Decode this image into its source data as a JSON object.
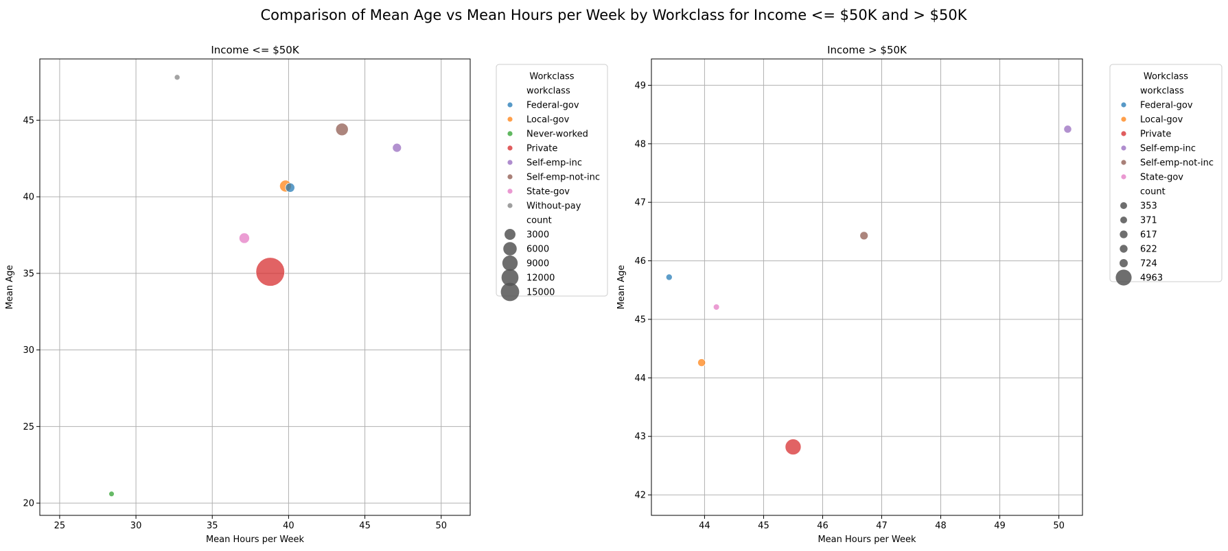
{
  "figure": {
    "title": "Comparison of Mean Age vs Mean Hours per Week by Workclass for Income <= $50K and > $50K"
  },
  "colors": {
    "Federal-gov": "#1f77b4",
    "Local-gov": "#ff7f0e",
    "Never-worked": "#2ca02c",
    "Private": "#d62728",
    "Self-emp-inc": "#9467bd",
    "Self-emp-not-inc": "#8c564b",
    "State-gov": "#e377c2",
    "Without-pay": "#7f7f7f",
    "size_key": "#555555",
    "grid": "#b0b0b0"
  },
  "chart_data": [
    {
      "type": "scatter",
      "title": "Income <= $50K",
      "xlabel": "Mean Hours per Week",
      "ylabel": "Mean Age",
      "xlim": [
        23.7,
        51.9
      ],
      "ylim": [
        19.2,
        49.0
      ],
      "xticks": [
        25,
        30,
        35,
        40,
        45,
        50
      ],
      "yticks": [
        20,
        25,
        30,
        35,
        40,
        45
      ],
      "grid": true,
      "legend": {
        "placement": "outside right",
        "title": "Workclass",
        "hue_title": "workclass",
        "hue_entries": [
          "Federal-gov",
          "Local-gov",
          "Never-worked",
          "Private",
          "Self-emp-inc",
          "Self-emp-not-inc",
          "State-gov",
          "Without-pay"
        ],
        "size_title": "count",
        "size_entries": [
          "3000",
          "6000",
          "9000",
          "12000",
          "15000"
        ],
        "size_entry_values": [
          3000,
          6000,
          9000,
          12000,
          15000
        ]
      },
      "points": [
        {
          "workclass": "Federal-gov",
          "x": 40.1,
          "y": 40.6,
          "count": 590
        },
        {
          "workclass": "Local-gov",
          "x": 39.8,
          "y": 40.7,
          "count": 1477
        },
        {
          "workclass": "Never-worked",
          "x": 28.4,
          "y": 20.6,
          "count": 7
        },
        {
          "workclass": "Private",
          "x": 38.8,
          "y": 35.1,
          "count": 17733
        },
        {
          "workclass": "Self-emp-inc",
          "x": 47.1,
          "y": 43.2,
          "count": 494
        },
        {
          "workclass": "Self-emp-not-inc",
          "x": 43.5,
          "y": 44.4,
          "count": 1817
        },
        {
          "workclass": "State-gov",
          "x": 37.1,
          "y": 37.3,
          "count": 945
        },
        {
          "workclass": "Without-pay",
          "x": 32.7,
          "y": 47.8,
          "count": 14
        }
      ]
    },
    {
      "type": "scatter",
      "title": "Income > $50K",
      "xlabel": "Mean Hours per Week",
      "ylabel": "Mean Age",
      "xlim": [
        43.1,
        50.4
      ],
      "ylim": [
        41.65,
        49.45
      ],
      "xticks": [
        44,
        45,
        46,
        47,
        48,
        49,
        50
      ],
      "yticks": [
        42,
        43,
        44,
        45,
        46,
        47,
        48,
        49
      ],
      "grid": true,
      "legend": {
        "placement": "outside right",
        "title": "Workclass",
        "hue_title": "workclass",
        "hue_entries": [
          "Federal-gov",
          "Local-gov",
          "Private",
          "Self-emp-inc",
          "Self-emp-not-inc",
          "State-gov"
        ],
        "size_title": "count",
        "size_entries": [
          "353",
          "371",
          "617",
          "622",
          "724",
          "4963"
        ],
        "size_entry_values": [
          353,
          371,
          617,
          622,
          724,
          4963
        ]
      },
      "points": [
        {
          "workclass": "Federal-gov",
          "x": 43.4,
          "y": 45.72,
          "count": 371
        },
        {
          "workclass": "Local-gov",
          "x": 43.95,
          "y": 44.26,
          "count": 617
        },
        {
          "workclass": "Private",
          "x": 45.5,
          "y": 42.82,
          "count": 4963
        },
        {
          "workclass": "Self-emp-inc",
          "x": 50.15,
          "y": 48.25,
          "count": 622
        },
        {
          "workclass": "Self-emp-not-inc",
          "x": 46.7,
          "y": 46.43,
          "count": 724
        },
        {
          "workclass": "State-gov",
          "x": 44.2,
          "y": 45.21,
          "count": 353
        }
      ]
    }
  ]
}
